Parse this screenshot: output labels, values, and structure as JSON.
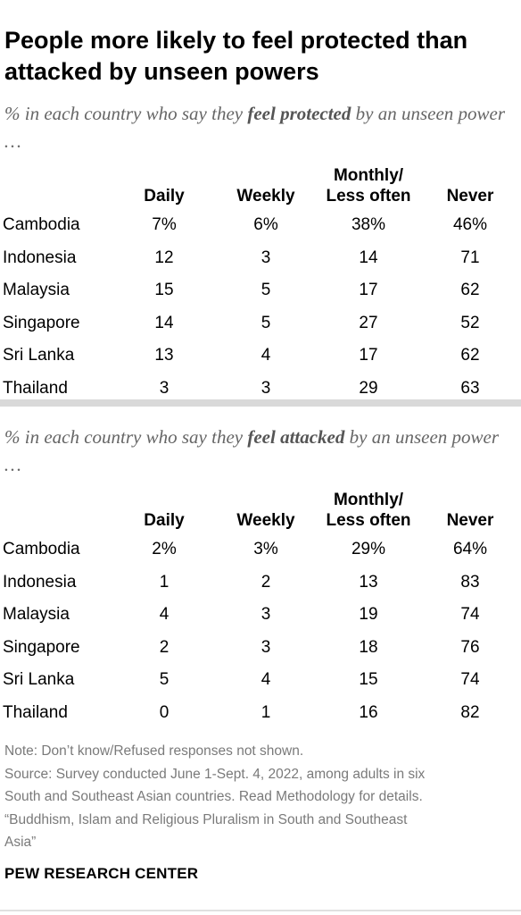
{
  "title": "People more likely to feel protected than attacked by unseen powers",
  "sections": [
    {
      "subtitle_pre": "% in each country who say they ",
      "subtitle_em": "feel protected",
      "subtitle_post": " by an unseen power …",
      "columns": [
        "Daily",
        "Weekly",
        "Monthly/\nLess often",
        "Never"
      ],
      "rows": [
        {
          "country": "Cambodia",
          "values": [
            "7%",
            "6%",
            "38%",
            "46%"
          ]
        },
        {
          "country": "Indonesia",
          "values": [
            "12",
            "3",
            "14",
            "71"
          ]
        },
        {
          "country": "Malaysia",
          "values": [
            "15",
            "5",
            "17",
            "62"
          ]
        },
        {
          "country": "Singapore",
          "values": [
            "14",
            "5",
            "27",
            "52"
          ]
        },
        {
          "country": "Sri Lanka",
          "values": [
            "13",
            "4",
            "17",
            "62"
          ]
        },
        {
          "country": "Thailand",
          "values": [
            "3",
            "3",
            "29",
            "63"
          ]
        }
      ]
    },
    {
      "subtitle_pre": "% in each country who say they ",
      "subtitle_em": "feel attacked",
      "subtitle_post": " by an unseen power …",
      "columns": [
        "Daily",
        "Weekly",
        "Monthly/\nLess often",
        "Never"
      ],
      "rows": [
        {
          "country": "Cambodia",
          "values": [
            "2%",
            "3%",
            "29%",
            "64%"
          ]
        },
        {
          "country": "Indonesia",
          "values": [
            "1",
            "2",
            "13",
            "83"
          ]
        },
        {
          "country": "Malaysia",
          "values": [
            "4",
            "3",
            "19",
            "74"
          ]
        },
        {
          "country": "Singapore",
          "values": [
            "2",
            "3",
            "18",
            "76"
          ]
        },
        {
          "country": "Sri Lanka",
          "values": [
            "5",
            "4",
            "15",
            "74"
          ]
        },
        {
          "country": "Thailand",
          "values": [
            "0",
            "1",
            "16",
            "82"
          ]
        }
      ]
    }
  ],
  "notes": [
    "Note: Don’t know/Refused responses not shown.",
    "Source: Survey conducted June 1-Sept. 4, 2022, among adults in six",
    "South and Southeast Asian countries. Read Methodology for details.",
    "“Buddhism, Islam and Religious Pluralism in South and Southeast",
    "Asia”"
  ],
  "brand": "PEW RESEARCH CENTER",
  "chart_data": [
    {
      "type": "table",
      "columns": [
        "Daily",
        "Weekly",
        "Monthly/Less often",
        "Never"
      ],
      "categories": [
        "Cambodia",
        "Indonesia",
        "Malaysia",
        "Singapore",
        "Sri Lanka",
        "Thailand"
      ],
      "series": [
        {
          "name": "Daily",
          "values": [
            7,
            12,
            15,
            14,
            13,
            3
          ]
        },
        {
          "name": "Weekly",
          "values": [
            6,
            3,
            5,
            5,
            4,
            3
          ]
        },
        {
          "name": "Monthly/Less often",
          "values": [
            38,
            14,
            17,
            27,
            17,
            29
          ]
        },
        {
          "name": "Never",
          "values": [
            46,
            71,
            62,
            52,
            62,
            63
          ]
        }
      ]
    },
    {
      "type": "table",
      "columns": [
        "Daily",
        "Weekly",
        "Monthly/Less often",
        "Never"
      ],
      "categories": [
        "Cambodia",
        "Indonesia",
        "Malaysia",
        "Singapore",
        "Sri Lanka",
        "Thailand"
      ],
      "series": [
        {
          "name": "Daily",
          "values": [
            2,
            1,
            4,
            2,
            5,
            0
          ]
        },
        {
          "name": "Weekly",
          "values": [
            3,
            2,
            3,
            3,
            4,
            1
          ]
        },
        {
          "name": "Monthly/Less often",
          "values": [
            29,
            13,
            19,
            18,
            15,
            16
          ]
        },
        {
          "name": "Never",
          "values": [
            64,
            83,
            74,
            76,
            74,
            82
          ]
        }
      ]
    }
  ]
}
